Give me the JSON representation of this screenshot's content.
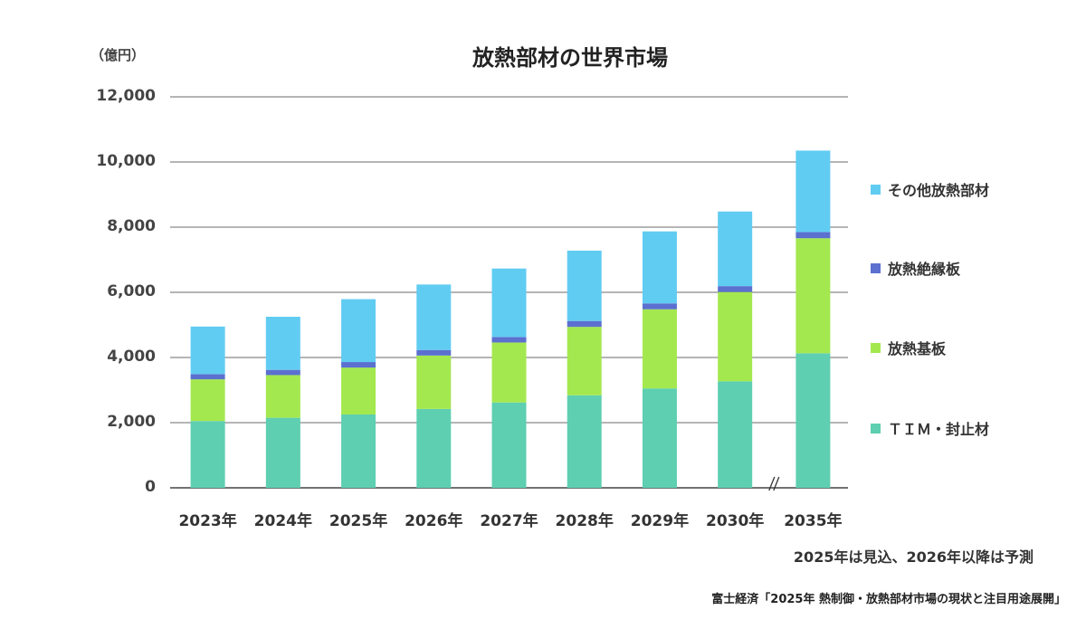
{
  "unit_label": "（億円）",
  "chart_data": {
    "type": "bar",
    "stacked": true,
    "title": "放熱部材の世界市場",
    "categories": [
      "2023年",
      "2024年",
      "2025年",
      "2026年",
      "2027年",
      "2028年",
      "2029年",
      "2030年",
      "2035年"
    ],
    "series": [
      {
        "name": "ＴＩＭ・封止材",
        "color": "#5ecfb1",
        "values": [
          2050,
          2150,
          2250,
          2420,
          2620,
          2840,
          3050,
          3270,
          4130
        ]
      },
      {
        "name": "放熱基板",
        "color": "#a4e84f",
        "values": [
          1280,
          1310,
          1440,
          1640,
          1840,
          2100,
          2430,
          2740,
          3530
        ]
      },
      {
        "name": "放熱絶縁板",
        "color": "#5b70cf",
        "values": [
          160,
          160,
          170,
          170,
          170,
          180,
          180,
          180,
          190
        ]
      },
      {
        "name": "その他放熱部材",
        "color": "#61ccf2",
        "values": [
          1460,
          1630,
          1930,
          2010,
          2100,
          2160,
          2210,
          2290,
          2500
        ]
      }
    ],
    "yticks": [
      "0",
      "2,000",
      "4,000",
      "6,000",
      "8,000",
      "10,000",
      "12,000"
    ],
    "ylim": [
      0,
      12000
    ],
    "grid": true,
    "legend_position": "right",
    "axis_break_mark": "//"
  },
  "note": "2025年は見込、2026年以降は予測",
  "source": "富士経済「2025年 熱制御・放熱部材市場の現状と注目用途展開」"
}
